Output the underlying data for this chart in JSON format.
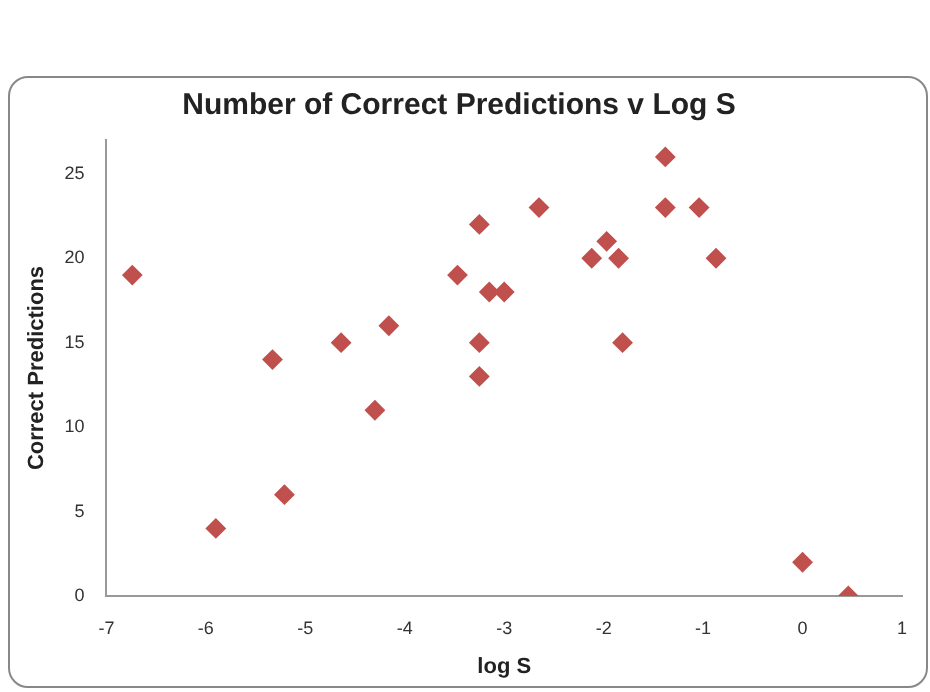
{
  "chart_data": {
    "type": "scatter",
    "title": "Number of Correct Predictions v Log S",
    "xlabel": "log S",
    "ylabel": "Correct Predictions",
    "x": [
      -6.74,
      -5.9,
      -5.33,
      -5.21,
      -4.64,
      -4.3,
      -4.16,
      -3.47,
      -3.25,
      -3.15,
      -3.0,
      -3.25,
      -3.25,
      -2.65,
      -2.12,
      -1.97,
      -1.85,
      -1.81,
      -1.38,
      -1.38,
      -1.04,
      -0.87,
      0.0,
      0.46
    ],
    "values": [
      19,
      4,
      14,
      6,
      15,
      11,
      16,
      19,
      22,
      18,
      18,
      15,
      13,
      23,
      20,
      21,
      20,
      15,
      26,
      23,
      23,
      20,
      2,
      0
    ],
    "color": "#c0504d",
    "marker": "diamond",
    "xlim": [
      -7,
      1
    ],
    "xticks": [
      -7,
      -6,
      -5,
      -4,
      -3,
      -2,
      -1,
      0,
      1
    ],
    "ylim": [
      0,
      27
    ],
    "yticks": [
      0,
      5,
      10,
      15,
      20,
      25
    ],
    "grid": false,
    "legend": false
  }
}
